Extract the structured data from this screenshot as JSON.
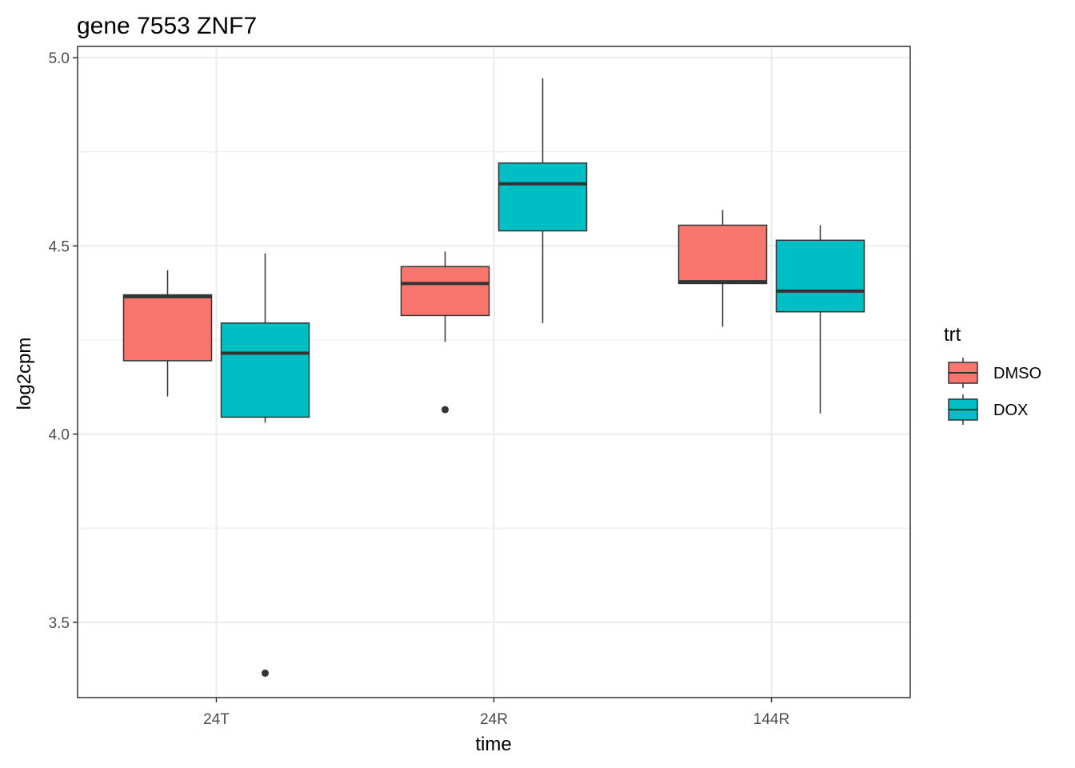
{
  "chart_data": {
    "type": "box",
    "title": "gene 7553 ZNF7",
    "xlabel": "time",
    "ylabel": "log2cpm",
    "categories": [
      "24T",
      "24R",
      "144R"
    ],
    "ylim": [
      3.3,
      5.03
    ],
    "yticks": [
      3.5,
      4.0,
      4.5,
      5.0
    ],
    "ytick_labels": [
      "3.5",
      "4.0",
      "4.5",
      "5.0"
    ],
    "grid": true,
    "legend": {
      "title": "trt",
      "position": "right",
      "entries": [
        {
          "label": "DMSO",
          "color": "#F8766D"
        },
        {
          "label": "DOX",
          "color": "#00BFC4"
        }
      ]
    },
    "series": [
      {
        "name": "DMSO",
        "color": "#F8766D",
        "boxes": [
          {
            "category": "24T",
            "whisker_low": 4.1,
            "q1": 4.195,
            "median": 4.365,
            "q3": 4.37,
            "whisker_high": 4.435,
            "outliers": []
          },
          {
            "category": "24R",
            "whisker_low": 4.245,
            "q1": 4.315,
            "median": 4.4,
            "q3": 4.445,
            "whisker_high": 4.485,
            "outliers": [
              4.065
            ]
          },
          {
            "category": "144R",
            "whisker_low": 4.285,
            "q1": 4.4,
            "median": 4.405,
            "q3": 4.555,
            "whisker_high": 4.595,
            "outliers": []
          }
        ]
      },
      {
        "name": "DOX",
        "color": "#00BFC4",
        "boxes": [
          {
            "category": "24T",
            "whisker_low": 4.03,
            "q1": 4.045,
            "median": 4.215,
            "q3": 4.295,
            "whisker_high": 4.48,
            "outliers": [
              3.365
            ]
          },
          {
            "category": "24R",
            "whisker_low": 4.295,
            "q1": 4.54,
            "median": 4.665,
            "q3": 4.72,
            "whisker_high": 4.945,
            "outliers": []
          },
          {
            "category": "144R",
            "whisker_low": 4.055,
            "q1": 4.325,
            "median": 4.38,
            "q3": 4.515,
            "whisker_high": 4.555,
            "outliers": []
          }
        ]
      }
    ]
  }
}
